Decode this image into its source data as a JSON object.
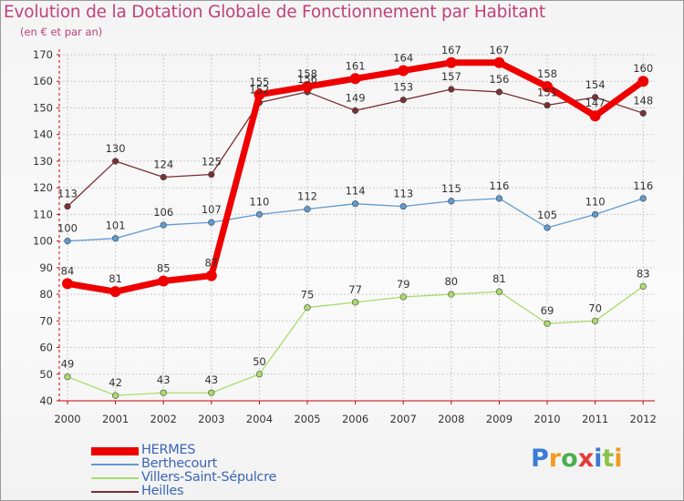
{
  "title": "Evolution de la Dotation Globale de Fonctionnement par Habitant",
  "subtitle": "(en € et par an)",
  "chart_data": {
    "type": "line",
    "title": "Evolution de la Dotation Globale de Fonctionnement par Habitant",
    "subtitle": "(en € et par an)",
    "xlabel": "",
    "ylabel": "",
    "ylim": [
      40,
      170
    ],
    "yticks": [
      40,
      50,
      60,
      70,
      80,
      90,
      100,
      110,
      120,
      130,
      140,
      150,
      160,
      170
    ],
    "grid": true,
    "categories": [
      "2000",
      "2001",
      "2002",
      "2003",
      "2004",
      "2005",
      "2006",
      "2007",
      "2008",
      "2009",
      "2010",
      "2011",
      "2012"
    ],
    "series": [
      {
        "name": "Heilles",
        "color": "#7a2f34",
        "values": [
          113,
          130,
          124,
          125,
          152,
          156,
          149,
          153,
          157,
          156,
          151,
          154,
          148
        ],
        "labels": [
          "113",
          "130",
          "124",
          "125",
          "152",
          "156",
          "149",
          "153",
          "157",
          "156",
          "151",
          "154",
          "148"
        ]
      },
      {
        "name": "Berthecourt",
        "color": "#5f9bd1",
        "values": [
          100,
          101,
          106,
          107,
          110,
          112,
          114,
          113,
          115,
          116,
          105,
          110,
          116
        ],
        "labels": [
          "100",
          "101",
          "106",
          "107",
          "110",
          "112",
          "114",
          "113",
          "115",
          "116",
          "105",
          "110",
          "116"
        ]
      },
      {
        "name": "Villers-Saint-Sépulcre",
        "color": "#a9dc6c",
        "values": [
          49,
          42,
          43,
          43,
          50,
          75,
          77,
          79,
          80,
          81,
          69,
          70,
          83
        ],
        "labels": [
          "49",
          "42",
          "43",
          "43",
          "50",
          "75",
          "77",
          "79",
          "80",
          "81",
          "69",
          "70",
          "83"
        ]
      },
      {
        "name": "HERMES",
        "color": "#ee0000",
        "values": [
          84,
          81,
          85,
          87,
          155,
          158,
          161,
          164,
          167,
          167,
          158,
          147,
          160
        ],
        "labels": [
          "84",
          "81",
          "85",
          "87",
          "155",
          "158",
          "161",
          "164",
          "167",
          "167",
          "158",
          "147",
          "160"
        ]
      }
    ],
    "legend": [
      "HERMES",
      "Berthecourt",
      "Villers-Saint-Sépulcre",
      "Heilles"
    ],
    "legend_position": "bottom-left"
  },
  "logo": {
    "letters": [
      "P",
      "r",
      "o",
      "x",
      "i",
      "t",
      "i"
    ],
    "colors": [
      "#3a7bd5",
      "#f29a1f",
      "#4caf50",
      "#e53935",
      "#3a7bd5",
      "#8bc34a",
      "#f29a1f"
    ]
  }
}
